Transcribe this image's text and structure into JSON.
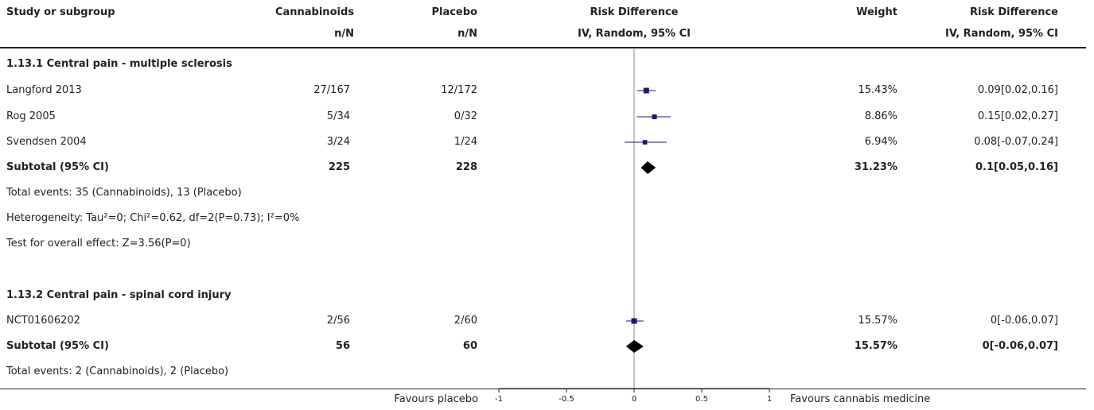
{
  "header": {
    "col_study": "Study or subgroup",
    "col_cann": "Cannabinoids",
    "col_cann_sub": "n/N",
    "col_plac": "Placebo",
    "col_plac_sub": "n/N",
    "col_rd": "Risk Difference",
    "col_rd_sub": "IV, Random, 95% CI",
    "col_weight": "Weight",
    "col_rd2": "Risk Difference",
    "col_rd2_sub": "IV, Random, 95% CI"
  },
  "groups": [
    {
      "title": "1.13.1 Central pain - multiple sclerosis",
      "studies": [
        {
          "name": "Langford 2013",
          "cann": "27/167",
          "plac": "12/172",
          "weight": "15.43%",
          "ci_text": "0.09[0.02,0.16]"
        },
        {
          "name": "Rog 2005",
          "cann": "5/34",
          "plac": "0/32",
          "weight": "8.86%",
          "ci_text": "0.15[0.02,0.27]"
        },
        {
          "name": "Svendsen 2004",
          "cann": "3/24",
          "plac": "1/24",
          "weight": "6.94%",
          "ci_text": "0.08[-0.07,0.24]"
        }
      ],
      "subtotal": {
        "label": "Subtotal (95% CI)",
        "cann": "225",
        "plac": "228",
        "weight": "31.23%",
        "ci_text": "0.1[0.05,0.16]"
      },
      "notes": [
        "Total events: 35 (Cannabinoids), 13 (Placebo)",
        "Heterogeneity: Tau²=0; Chi²=0.62, df=2(P=0.73); I²=0%",
        "Test for overall effect: Z=3.56(P=0)"
      ]
    },
    {
      "title": "1.13.2 Central pain - spinal cord injury",
      "studies": [
        {
          "name": "NCT01606202",
          "cann": "2/56",
          "plac": "2/60",
          "weight": "15.57%",
          "ci_text": "0[-0.06,0.07]"
        }
      ],
      "subtotal": {
        "label": "Subtotal (95% CI)",
        "cann": "56",
        "plac": "60",
        "weight": "15.57%",
        "ci_text": "0[-0.06,0.07]"
      },
      "notes": [
        "Total events: 2 (Cannabinoids), 2 (Placebo)"
      ]
    }
  ],
  "footer": {
    "favours_left": "Favours placebo",
    "favours_right": "Favours cannabis medicine"
  },
  "chart_data": {
    "type": "forest",
    "xlim": [
      -1,
      1
    ],
    "ticks": [
      "-1",
      "-0.5",
      "0",
      "0.5",
      "1"
    ],
    "tick_values": [
      -1,
      -0.5,
      0,
      0.5,
      1
    ],
    "studies": [
      {
        "name": "Langford 2013",
        "est": 0.09,
        "lo": 0.02,
        "hi": 0.16,
        "weight": 15.43
      },
      {
        "name": "Rog 2005",
        "est": 0.15,
        "lo": 0.02,
        "hi": 0.27,
        "weight": 8.86
      },
      {
        "name": "Svendsen 2004",
        "est": 0.08,
        "lo": -0.07,
        "hi": 0.24,
        "weight": 6.94
      },
      {
        "name": "NCT01606202",
        "est": 0,
        "lo": -0.06,
        "hi": 0.07,
        "weight": 15.57
      }
    ],
    "subtotals": [
      {
        "label": "Subtotal 1.13.1",
        "est": 0.1,
        "lo": 0.05,
        "hi": 0.16
      },
      {
        "label": "Subtotal 1.13.2",
        "est": 0,
        "lo": -0.06,
        "hi": 0.07
      }
    ],
    "colors": {
      "point": "#1a1a7a",
      "line": "#1a1a7a",
      "diamond": "#000000"
    }
  }
}
